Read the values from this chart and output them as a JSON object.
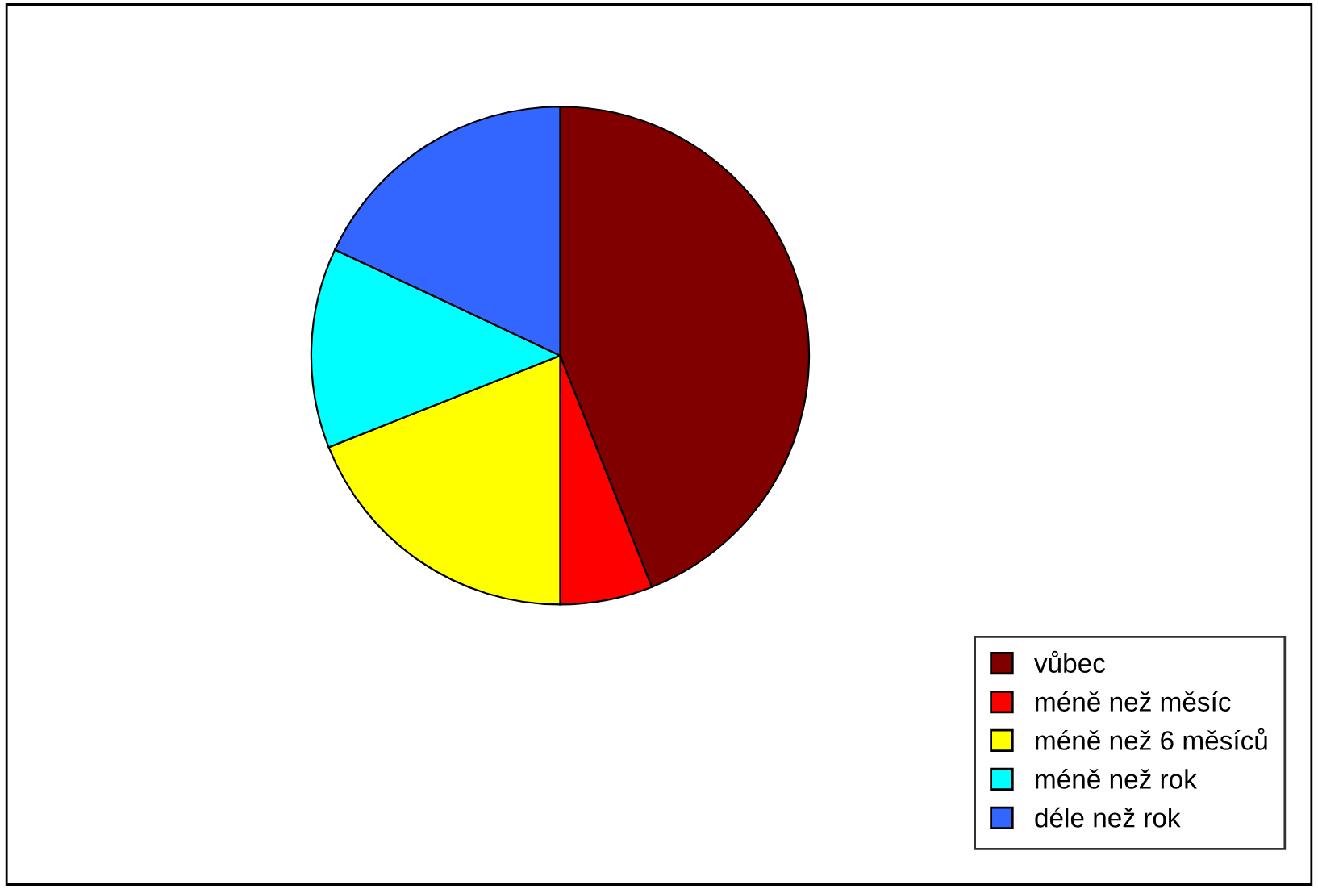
{
  "chart_data": {
    "type": "pie",
    "categories": [
      "vůbec",
      "méně než měsíc",
      "méně než 6 měsíců",
      "méně než rok",
      "déle než rok"
    ],
    "values": [
      44,
      6,
      19,
      13,
      18
    ],
    "colors": [
      "#800000",
      "#ff0000",
      "#ffff00",
      "#00ffff",
      "#3366ff"
    ],
    "legend": "bottom right"
  }
}
